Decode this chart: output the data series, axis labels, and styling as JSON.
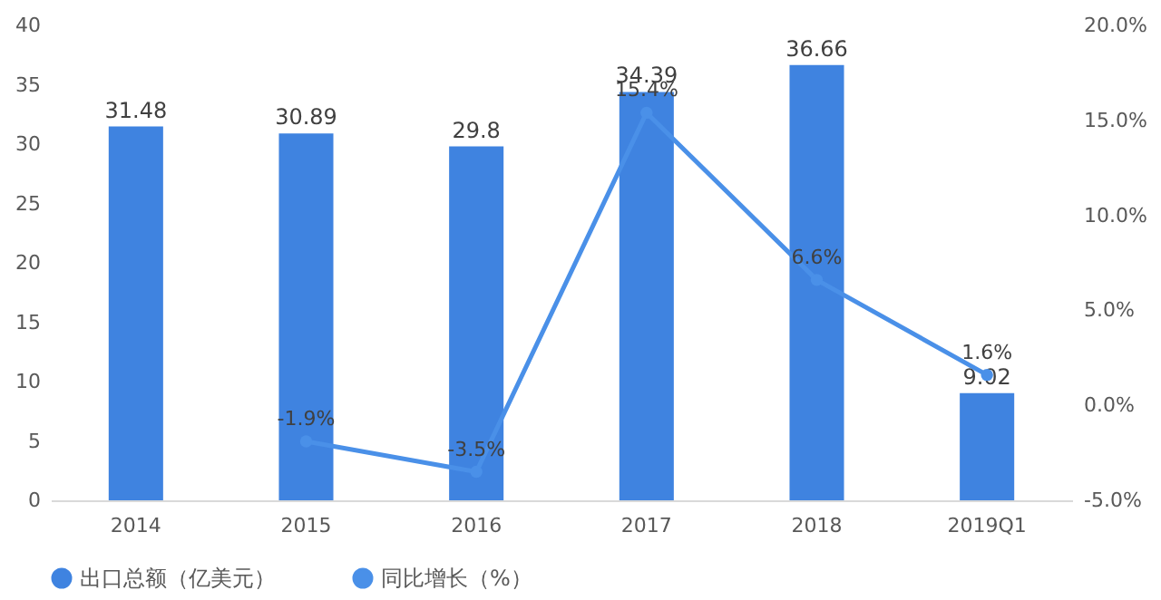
{
  "chart_data": {
    "type": "bar",
    "categories": [
      "2014",
      "2015",
      "2016",
      "2017",
      "2018",
      "2019Q1"
    ],
    "series": [
      {
        "name": "出口总额（亿美元）",
        "color": "#3f83e0",
        "values": [
          31.48,
          30.89,
          29.8,
          34.39,
          36.66,
          9.02
        ],
        "value_labels": [
          "31.48",
          "30.89",
          "29.8",
          "34.39",
          "36.66",
          "9.02"
        ]
      },
      {
        "name": "同比增长（%）",
        "type": "line",
        "axis": "y2",
        "color": "#4a90e8",
        "marker": "circle",
        "values": [
          null,
          -1.9,
          -3.5,
          15.4,
          6.6,
          1.6
        ],
        "value_labels": [
          null,
          "-1.9%",
          "-3.5%",
          "15.4%",
          "6.6%",
          "1.6%"
        ]
      }
    ],
    "ylim": [
      0,
      40
    ],
    "yticks": [
      0,
      5,
      10,
      15,
      20,
      25,
      30,
      35,
      40
    ],
    "y2lim": [
      -5,
      20
    ],
    "y2ticks": [
      {
        "value": -5,
        "label": "-5.0%"
      },
      {
        "value": 0,
        "label": "0.0%"
      },
      {
        "value": 5,
        "label": "5.0%"
      },
      {
        "value": 10,
        "label": "10.0%"
      },
      {
        "value": 15,
        "label": "15.0%"
      },
      {
        "value": 20,
        "label": "20.0%"
      }
    ],
    "legend": "bottom",
    "grid": false
  }
}
